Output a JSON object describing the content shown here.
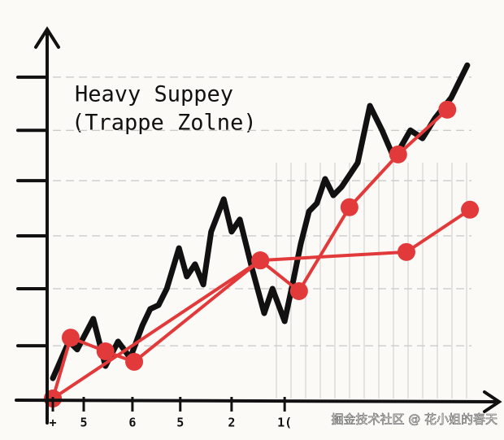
{
  "chart_data": {
    "type": "line",
    "title": "Heavy Suppey",
    "subtitle": "(Trappe Zolne)",
    "xlim": [
      0,
      100
    ],
    "ylim": [
      0,
      100
    ],
    "xticks": [
      {
        "value": 0,
        "label": "+"
      },
      {
        "value": 7.1,
        "label": "5"
      },
      {
        "value": 18.3,
        "label": "6"
      },
      {
        "value": 29.3,
        "label": "5"
      },
      {
        "value": 41.1,
        "label": "2"
      },
      {
        "value": 53.3,
        "label": "1("
      }
    ],
    "yticks": [
      15.1,
      31.4,
      46.5,
      62.3,
      76.7,
      91.9
    ],
    "grid": true,
    "series": [
      {
        "color": "#111111",
        "markers": false,
        "x": [
          0,
          3.7,
          5.6,
          9.3,
          12.1,
          15.0,
          17.8,
          20.6,
          22.4,
          24.3,
          26.2,
          29.0,
          30.8,
          32.7,
          34.6,
          36.4,
          39.3,
          41.1,
          43.0,
          45.8,
          48.6,
          50.5,
          53.3,
          55.1,
          57.0,
          58.9,
          60.7,
          62.6,
          64.5,
          66.4,
          70.1,
          72.9,
          75.7,
          78.5,
          82.2,
          85.0,
          87.9,
          91.6,
          95.3
        ],
        "values": [
          5.8,
          16.3,
          14.0,
          22.8,
          9.3,
          16.3,
          11.6,
          20.9,
          25.6,
          26.7,
          31.4,
          43.0,
          34.9,
          38.4,
          32.6,
          47.7,
          57.0,
          47.7,
          51.2,
          37.2,
          24.4,
          31.4,
          22.1,
          32.6,
          44.2,
          53.5,
          55.8,
          62.8,
          58.1,
          60.5,
          67.4,
          83.7,
          76.7,
          68.6,
          76.7,
          74.4,
          80.2,
          86.0,
          95.3
        ]
      },
      {
        "color": "#e23a3a",
        "markers": true,
        "x": [
          0,
          4.1,
          12.1,
          18.7,
          47.7,
          56.6,
          68.2,
          79.4,
          90.7
        ],
        "values": [
          0,
          17.4,
          13.5,
          10.5,
          39.5,
          30.7,
          54.7,
          69.8,
          82.6
        ]
      },
      {
        "color": "#e23a3a",
        "markers": true,
        "x": [
          0,
          47.7,
          81.3,
          95.9
        ],
        "values": [
          0,
          39.5,
          41.9,
          54.0
        ]
      }
    ]
  },
  "watermark": "掘金技术社区 @ 花小姐的春天"
}
